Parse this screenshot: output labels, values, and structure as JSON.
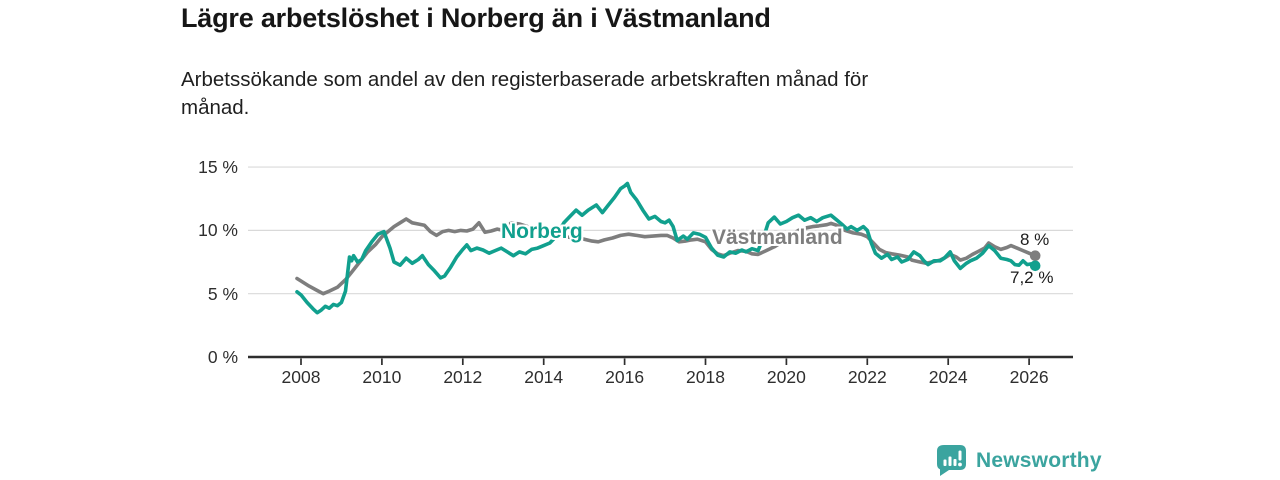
{
  "header": {
    "title": "Lägre arbetslöshet i Norberg än i Västmanland",
    "subtitle": "Arbetssökande som andel av den registerbaserade arbetskraften månad för\nmånad."
  },
  "branding": {
    "wordmark": "Newsworthy",
    "logo_icon": "bar-chart-speech-bubble-icon",
    "brand_color": "#3BA49F"
  },
  "colors": {
    "norberg_line": "#11A08E",
    "vastmanland_line": "#7E7E7E",
    "grid": "#D9D9D9",
    "axis": "#2E2E2E",
    "text": "#1A1A1A"
  },
  "chart_data": {
    "type": "line",
    "title": "Lägre arbetslöshet i Norberg än i Västmanland",
    "subtitle": "Arbetssökande som andel av den registerbaserade arbetskraften månad för månad.",
    "unit": "%",
    "grid": true,
    "x_axis": {
      "ticks": [
        2008,
        2010,
        2012,
        2014,
        2016,
        2018,
        2020,
        2022,
        2024,
        2026
      ],
      "range_years": [
        2006.7,
        2027.1
      ]
    },
    "y_axis": {
      "ticks": [
        {
          "value": 0,
          "label": "0 %"
        },
        {
          "value": 5,
          "label": "5 %"
        },
        {
          "value": 10,
          "label": "10 %"
        },
        {
          "value": 15,
          "label": "15 %"
        }
      ],
      "range_percent": [
        0,
        15.8
      ]
    },
    "series": [
      {
        "name": "Norberg",
        "color": "#11A08E",
        "end_label": "7,2 %",
        "end_value": 7.2,
        "points": [
          [
            2007.9,
            5.15
          ],
          [
            2008.0,
            4.9
          ],
          [
            2008.15,
            4.3
          ],
          [
            2008.3,
            3.8
          ],
          [
            2008.4,
            3.5
          ],
          [
            2008.5,
            3.7
          ],
          [
            2008.6,
            4.0
          ],
          [
            2008.7,
            3.85
          ],
          [
            2008.8,
            4.15
          ],
          [
            2008.9,
            4.05
          ],
          [
            2009.0,
            4.3
          ],
          [
            2009.1,
            5.2
          ],
          [
            2009.2,
            7.9
          ],
          [
            2009.25,
            7.6
          ],
          [
            2009.3,
            8.0
          ],
          [
            2009.4,
            7.5
          ],
          [
            2009.5,
            7.7
          ],
          [
            2009.6,
            8.4
          ],
          [
            2009.75,
            9.1
          ],
          [
            2009.9,
            9.7
          ],
          [
            2010.05,
            9.9
          ],
          [
            2010.2,
            8.6
          ],
          [
            2010.3,
            7.5
          ],
          [
            2010.45,
            7.25
          ],
          [
            2010.6,
            7.8
          ],
          [
            2010.75,
            7.4
          ],
          [
            2010.9,
            7.7
          ],
          [
            2011.0,
            8.0
          ],
          [
            2011.15,
            7.3
          ],
          [
            2011.3,
            6.8
          ],
          [
            2011.45,
            6.25
          ],
          [
            2011.55,
            6.4
          ],
          [
            2011.7,
            7.1
          ],
          [
            2011.85,
            7.9
          ],
          [
            2012.0,
            8.5
          ],
          [
            2012.1,
            8.85
          ],
          [
            2012.2,
            8.4
          ],
          [
            2012.35,
            8.6
          ],
          [
            2012.5,
            8.45
          ],
          [
            2012.65,
            8.2
          ],
          [
            2012.8,
            8.4
          ],
          [
            2012.95,
            8.6
          ],
          [
            2013.1,
            8.3
          ],
          [
            2013.25,
            8.0
          ],
          [
            2013.4,
            8.3
          ],
          [
            2013.55,
            8.15
          ],
          [
            2013.7,
            8.5
          ],
          [
            2013.85,
            8.6
          ],
          [
            2014.0,
            8.8
          ],
          [
            2014.15,
            9.0
          ],
          [
            2014.3,
            9.5
          ],
          [
            2014.5,
            10.6
          ],
          [
            2014.65,
            11.1
          ],
          [
            2014.8,
            11.6
          ],
          [
            2014.95,
            11.2
          ],
          [
            2015.1,
            11.6
          ],
          [
            2015.3,
            12.0
          ],
          [
            2015.45,
            11.4
          ],
          [
            2015.6,
            12.0
          ],
          [
            2015.75,
            12.6
          ],
          [
            2015.9,
            13.3
          ],
          [
            2016.0,
            13.5
          ],
          [
            2016.07,
            13.7
          ],
          [
            2016.15,
            13.0
          ],
          [
            2016.3,
            12.4
          ],
          [
            2016.45,
            11.6
          ],
          [
            2016.6,
            10.9
          ],
          [
            2016.75,
            11.1
          ],
          [
            2016.9,
            10.7
          ],
          [
            2017.0,
            10.6
          ],
          [
            2017.1,
            10.8
          ],
          [
            2017.2,
            10.3
          ],
          [
            2017.3,
            9.2
          ],
          [
            2017.45,
            9.55
          ],
          [
            2017.55,
            9.3
          ],
          [
            2017.7,
            9.8
          ],
          [
            2017.85,
            9.7
          ],
          [
            2018.0,
            9.45
          ],
          [
            2018.15,
            8.6
          ],
          [
            2018.3,
            8.05
          ],
          [
            2018.45,
            7.9
          ],
          [
            2018.6,
            8.3
          ],
          [
            2018.75,
            8.2
          ],
          [
            2018.9,
            8.45
          ],
          [
            2019.0,
            8.3
          ],
          [
            2019.15,
            8.55
          ],
          [
            2019.3,
            8.4
          ],
          [
            2019.45,
            9.6
          ],
          [
            2019.55,
            10.6
          ],
          [
            2019.7,
            11.05
          ],
          [
            2019.85,
            10.5
          ],
          [
            2020.0,
            10.7
          ],
          [
            2020.15,
            11.0
          ],
          [
            2020.3,
            11.2
          ],
          [
            2020.45,
            10.8
          ],
          [
            2020.6,
            11.0
          ],
          [
            2020.75,
            10.7
          ],
          [
            2020.9,
            11.0
          ],
          [
            2021.1,
            11.2
          ],
          [
            2021.25,
            10.8
          ],
          [
            2021.4,
            10.4
          ],
          [
            2021.5,
            10.1
          ],
          [
            2021.6,
            10.3
          ],
          [
            2021.75,
            10.0
          ],
          [
            2021.9,
            10.3
          ],
          [
            2022.0,
            10.0
          ],
          [
            2022.1,
            9.0
          ],
          [
            2022.2,
            8.2
          ],
          [
            2022.35,
            7.8
          ],
          [
            2022.5,
            8.1
          ],
          [
            2022.6,
            7.7
          ],
          [
            2022.75,
            7.9
          ],
          [
            2022.85,
            7.5
          ],
          [
            2023.0,
            7.7
          ],
          [
            2023.15,
            8.3
          ],
          [
            2023.3,
            8.0
          ],
          [
            2023.4,
            7.6
          ],
          [
            2023.5,
            7.3
          ],
          [
            2023.65,
            7.6
          ],
          [
            2023.8,
            7.6
          ],
          [
            2023.9,
            7.8
          ],
          [
            2024.05,
            8.3
          ],
          [
            2024.15,
            7.6
          ],
          [
            2024.3,
            7.0
          ],
          [
            2024.45,
            7.4
          ],
          [
            2024.55,
            7.6
          ],
          [
            2024.7,
            7.8
          ],
          [
            2024.85,
            8.2
          ],
          [
            2025.0,
            8.8
          ],
          [
            2025.15,
            8.4
          ],
          [
            2025.3,
            7.8
          ],
          [
            2025.45,
            7.7
          ],
          [
            2025.55,
            7.6
          ],
          [
            2025.65,
            7.3
          ],
          [
            2025.75,
            7.25
          ],
          [
            2025.85,
            7.6
          ],
          [
            2025.95,
            7.3
          ],
          [
            2026.05,
            7.35
          ],
          [
            2026.15,
            7.2
          ]
        ]
      },
      {
        "name": "Västmanland",
        "color": "#7E7E7E",
        "end_label": "8 %",
        "end_value": 8.0,
        "points": [
          [
            2007.9,
            6.2
          ],
          [
            2008.0,
            6.0
          ],
          [
            2008.2,
            5.6
          ],
          [
            2008.4,
            5.25
          ],
          [
            2008.55,
            5.0
          ],
          [
            2008.7,
            5.2
          ],
          [
            2008.9,
            5.5
          ],
          [
            2009.1,
            6.1
          ],
          [
            2009.25,
            6.7
          ],
          [
            2009.45,
            7.5
          ],
          [
            2009.65,
            8.3
          ],
          [
            2009.85,
            8.9
          ],
          [
            2010.0,
            9.5
          ],
          [
            2010.15,
            9.9
          ],
          [
            2010.3,
            10.3
          ],
          [
            2010.45,
            10.6
          ],
          [
            2010.6,
            10.9
          ],
          [
            2010.75,
            10.6
          ],
          [
            2010.9,
            10.5
          ],
          [
            2011.05,
            10.4
          ],
          [
            2011.2,
            9.9
          ],
          [
            2011.35,
            9.6
          ],
          [
            2011.5,
            9.9
          ],
          [
            2011.65,
            10.0
          ],
          [
            2011.8,
            9.9
          ],
          [
            2011.95,
            10.0
          ],
          [
            2012.1,
            9.95
          ],
          [
            2012.25,
            10.1
          ],
          [
            2012.4,
            10.6
          ],
          [
            2012.55,
            9.85
          ],
          [
            2012.7,
            9.95
          ],
          [
            2012.85,
            10.1
          ],
          [
            2013.0,
            10.0
          ],
          [
            2013.2,
            10.6
          ],
          [
            2013.4,
            10.5
          ],
          [
            2013.6,
            10.3
          ],
          [
            2013.8,
            10.1
          ],
          [
            2014.0,
            9.9
          ],
          [
            2014.2,
            9.8
          ],
          [
            2014.5,
            9.5
          ],
          [
            2014.8,
            9.4
          ],
          [
            2015.0,
            9.3
          ],
          [
            2015.2,
            9.15
          ],
          [
            2015.35,
            9.1
          ],
          [
            2015.5,
            9.25
          ],
          [
            2015.7,
            9.4
          ],
          [
            2015.9,
            9.6
          ],
          [
            2016.1,
            9.7
          ],
          [
            2016.3,
            9.6
          ],
          [
            2016.5,
            9.5
          ],
          [
            2016.7,
            9.55
          ],
          [
            2016.9,
            9.6
          ],
          [
            2017.05,
            9.6
          ],
          [
            2017.2,
            9.4
          ],
          [
            2017.35,
            9.1
          ],
          [
            2017.5,
            9.15
          ],
          [
            2017.65,
            9.25
          ],
          [
            2017.8,
            9.3
          ],
          [
            2018.0,
            9.1
          ],
          [
            2018.15,
            8.5
          ],
          [
            2018.3,
            8.15
          ],
          [
            2018.45,
            8.0
          ],
          [
            2018.6,
            8.2
          ],
          [
            2018.8,
            8.4
          ],
          [
            2019.0,
            8.35
          ],
          [
            2019.15,
            8.15
          ],
          [
            2019.3,
            8.1
          ],
          [
            2019.5,
            8.4
          ],
          [
            2019.7,
            8.7
          ],
          [
            2019.9,
            9.1
          ],
          [
            2020.1,
            9.6
          ],
          [
            2020.3,
            10.0
          ],
          [
            2020.5,
            10.2
          ],
          [
            2020.65,
            10.3
          ],
          [
            2020.8,
            10.35
          ],
          [
            2021.0,
            10.45
          ],
          [
            2021.1,
            10.55
          ],
          [
            2021.25,
            10.4
          ],
          [
            2021.45,
            10.0
          ],
          [
            2021.65,
            9.8
          ],
          [
            2021.85,
            9.7
          ],
          [
            2022.0,
            9.5
          ],
          [
            2022.15,
            9.0
          ],
          [
            2022.3,
            8.5
          ],
          [
            2022.45,
            8.25
          ],
          [
            2022.6,
            8.15
          ],
          [
            2022.8,
            8.05
          ],
          [
            2023.0,
            7.9
          ],
          [
            2023.1,
            7.65
          ],
          [
            2023.3,
            7.5
          ],
          [
            2023.45,
            7.4
          ],
          [
            2023.6,
            7.5
          ],
          [
            2023.8,
            7.65
          ],
          [
            2023.95,
            7.9
          ],
          [
            2024.05,
            8.1
          ],
          [
            2024.2,
            7.9
          ],
          [
            2024.3,
            7.65
          ],
          [
            2024.45,
            7.8
          ],
          [
            2024.6,
            8.1
          ],
          [
            2024.75,
            8.35
          ],
          [
            2024.9,
            8.6
          ],
          [
            2025.0,
            9.0
          ],
          [
            2025.15,
            8.7
          ],
          [
            2025.3,
            8.5
          ],
          [
            2025.45,
            8.65
          ],
          [
            2025.55,
            8.8
          ],
          [
            2025.7,
            8.6
          ],
          [
            2025.85,
            8.4
          ],
          [
            2026.0,
            8.2
          ],
          [
            2026.15,
            8.0
          ]
        ]
      }
    ]
  }
}
